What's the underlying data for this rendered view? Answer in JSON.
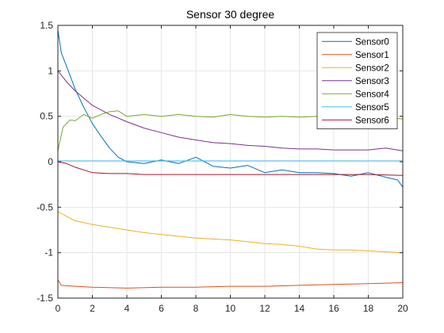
{
  "chart_data": {
    "type": "line",
    "title": "Sensor 30 degree",
    "xlabel": "",
    "ylabel": "",
    "xlim": [
      0,
      20
    ],
    "ylim": [
      -1.5,
      1.5
    ],
    "xticks": [
      "0",
      "2",
      "4",
      "6",
      "8",
      "10",
      "12",
      "14",
      "16",
      "18",
      "20"
    ],
    "yticks": [
      "-1.5",
      "-1",
      "-0.5",
      "0",
      "0.5",
      "1",
      "1.5"
    ],
    "grid": true,
    "legend_position": "top-right",
    "series": [
      {
        "name": "Sensor0",
        "color": "#0072BD",
        "x": [
          0,
          0.2,
          0.5,
          1,
          1.5,
          2,
          2.5,
          3,
          3.5,
          4,
          5,
          6,
          7,
          8,
          9,
          10,
          11,
          12,
          13,
          14,
          15,
          16,
          17,
          18,
          19,
          19.7,
          20
        ],
        "y": [
          1.45,
          1.2,
          1.05,
          0.8,
          0.6,
          0.42,
          0.28,
          0.15,
          0.05,
          0.0,
          -0.02,
          0.02,
          -0.02,
          0.05,
          -0.05,
          -0.07,
          -0.04,
          -0.12,
          -0.09,
          -0.12,
          -0.12,
          -0.13,
          -0.16,
          -0.12,
          -0.17,
          -0.2,
          -0.28
        ]
      },
      {
        "name": "Sensor1",
        "color": "#D95319",
        "x": [
          0,
          0.2,
          1,
          2,
          4,
          6,
          8,
          10,
          12,
          14,
          16,
          18,
          20
        ],
        "y": [
          -1.3,
          -1.36,
          -1.37,
          -1.38,
          -1.39,
          -1.38,
          -1.38,
          -1.37,
          -1.37,
          -1.36,
          -1.35,
          -1.34,
          -1.33
        ]
      },
      {
        "name": "Sensor2",
        "color": "#EDB120",
        "x": [
          0,
          0.5,
          1,
          2,
          3,
          4,
          5,
          6,
          7,
          8,
          9,
          10,
          11,
          12,
          13,
          14,
          15,
          16,
          17,
          18,
          19,
          20
        ],
        "y": [
          -0.55,
          -0.6,
          -0.65,
          -0.69,
          -0.72,
          -0.75,
          -0.78,
          -0.8,
          -0.82,
          -0.84,
          -0.85,
          -0.86,
          -0.88,
          -0.9,
          -0.91,
          -0.93,
          -0.96,
          -0.97,
          -0.97,
          -0.98,
          -0.99,
          -1.0
        ]
      },
      {
        "name": "Sensor3",
        "color": "#7E2F8E",
        "x": [
          0,
          0.5,
          1,
          1.5,
          2,
          3,
          4,
          5,
          6,
          7,
          8,
          9,
          10,
          11,
          12,
          13,
          14,
          15,
          16,
          17,
          18,
          19,
          20
        ],
        "y": [
          1.0,
          0.88,
          0.78,
          0.7,
          0.62,
          0.52,
          0.44,
          0.37,
          0.32,
          0.27,
          0.24,
          0.21,
          0.2,
          0.18,
          0.17,
          0.15,
          0.14,
          0.14,
          0.13,
          0.13,
          0.13,
          0.15,
          0.12
        ]
      },
      {
        "name": "Sensor4",
        "color": "#77AC30",
        "x": [
          0,
          0.3,
          0.7,
          1,
          1.5,
          2,
          2.5,
          3,
          3.5,
          4,
          5,
          6,
          7,
          8,
          9,
          10,
          11,
          12,
          13,
          14,
          15,
          16,
          17,
          18,
          19,
          20
        ],
        "y": [
          0.12,
          0.38,
          0.46,
          0.45,
          0.52,
          0.48,
          0.52,
          0.55,
          0.56,
          0.5,
          0.52,
          0.5,
          0.52,
          0.5,
          0.49,
          0.52,
          0.5,
          0.49,
          0.5,
          0.49,
          0.5,
          0.49,
          0.5,
          0.5,
          0.49,
          0.47
        ]
      },
      {
        "name": "Sensor5",
        "color": "#4DBEEE",
        "x": [
          0,
          2,
          4,
          6,
          8,
          10,
          12,
          14,
          16,
          18,
          20
        ],
        "y": [
          0.01,
          0.01,
          0.01,
          0.01,
          0.01,
          0.01,
          0.01,
          0.01,
          0.01,
          0.01,
          0.01
        ]
      },
      {
        "name": "Sensor6",
        "color": "#A2142F",
        "x": [
          0,
          0.5,
          1,
          1.5,
          2,
          3,
          4,
          5,
          6,
          8,
          10,
          12,
          14,
          16,
          18,
          20
        ],
        "y": [
          0.0,
          -0.02,
          -0.06,
          -0.09,
          -0.12,
          -0.13,
          -0.13,
          -0.14,
          -0.14,
          -0.14,
          -0.14,
          -0.14,
          -0.14,
          -0.14,
          -0.14,
          -0.15
        ]
      }
    ]
  }
}
